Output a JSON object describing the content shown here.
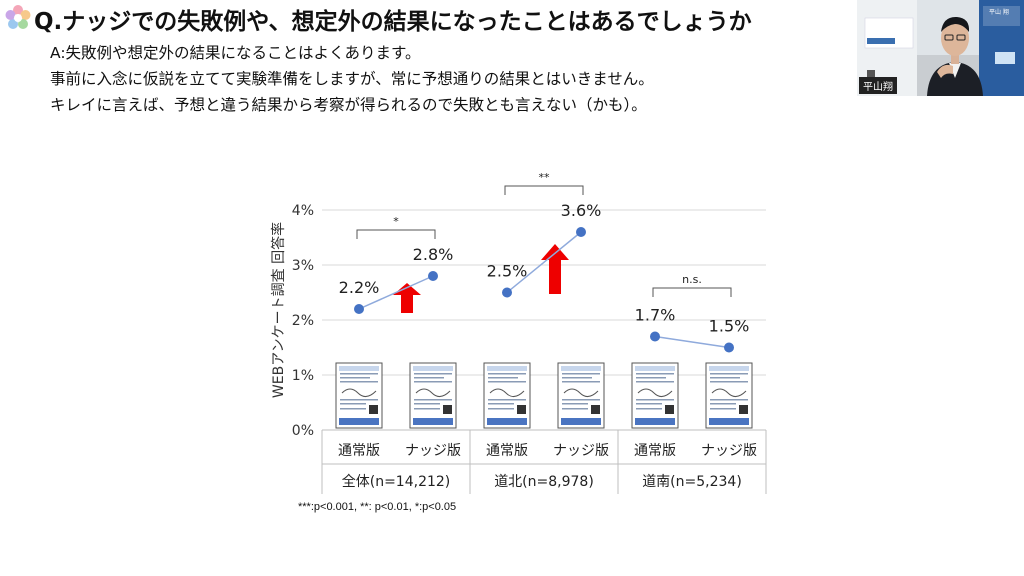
{
  "slide": {
    "title": "Q.ナッジでの失敗例や、想定外の結果になったことはあるでしょうか",
    "answer_lines": [
      "A:失敗例や想定外の結果になることはよくあります。",
      "事前に入念に仮説を立てて実験準備をしますが、常に予想通りの結果とはいきません。",
      "キレイに言えば、予想と違う結果から考察が得られるので失敗とも言えない（かも）。"
    ],
    "footnote": "***:p<0.001, **: p<0.01, *:p<0.05"
  },
  "video": {
    "name_label": "平山翔",
    "badge_text": "平山 翔"
  },
  "chart_data": {
    "type": "line",
    "ylabel": "WEBアンケート調査 回答率",
    "ylim": [
      0,
      4
    ],
    "yticks": [
      "0%",
      "1%",
      "2%",
      "3%",
      "4%"
    ],
    "grid": true,
    "categories": [
      "通常版",
      "ナッジ版",
      "通常版",
      "ナッジ版",
      "通常版",
      "ナッジ版"
    ],
    "groups": [
      {
        "label": "全体(n=14,212)",
        "values": [
          2.2,
          2.8
        ],
        "value_labels": [
          "2.2%",
          "2.8%"
        ],
        "significance": "*",
        "increase_arrow": true
      },
      {
        "label": "道北(n=8,978)",
        "values": [
          2.5,
          3.6
        ],
        "value_labels": [
          "2.5%",
          "3.6%"
        ],
        "significance": "**",
        "increase_arrow": true
      },
      {
        "label": "道南(n=5,234)",
        "values": [
          1.7,
          1.5
        ],
        "value_labels": [
          "1.7%",
          "1.5%"
        ],
        "significance": "n.s.",
        "increase_arrow": false
      }
    ],
    "colors": {
      "point": "#4472c4",
      "line": "#8faadc",
      "arrow": "#ee0000"
    }
  }
}
